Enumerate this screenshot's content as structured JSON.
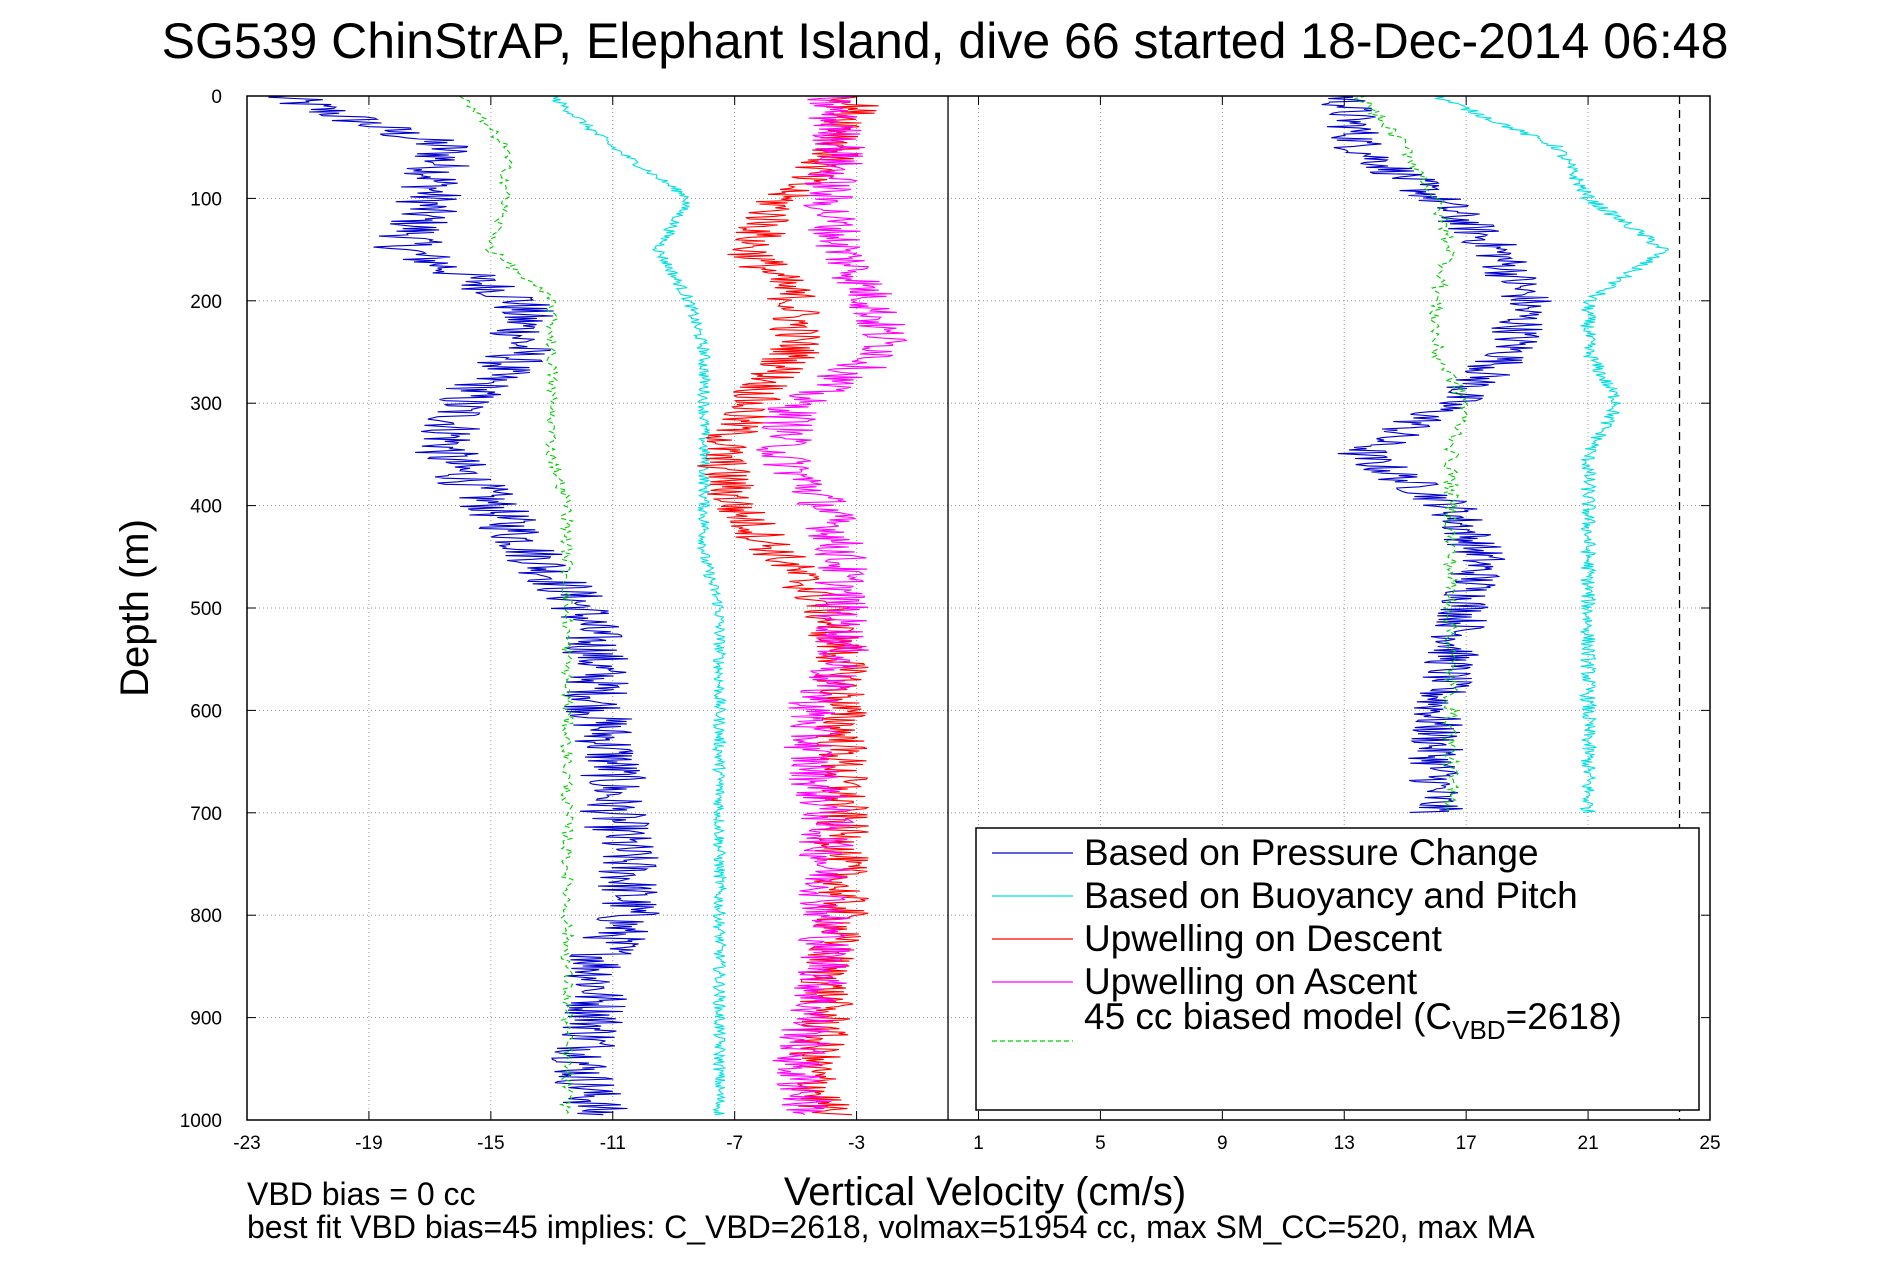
{
  "chart_data": {
    "type": "line",
    "title": "SG539 ChinStrAP, Elephant Island, dive 66 started 18-Dec-2014 06:48",
    "xlabel": "Vertical Velocity (cm/s)",
    "ylabel": "Depth (m)",
    "xlim": [
      -23,
      25
    ],
    "ylim": [
      0,
      1000
    ],
    "y_reversed": true,
    "grid": true,
    "x_ticks": [
      "-23",
      "-19",
      "-15",
      "-11",
      "-7",
      "-3",
      "1",
      "5",
      "9",
      "13",
      "17",
      "21",
      "25"
    ],
    "y_ticks": [
      "0",
      "100",
      "200",
      "300",
      "400",
      "500",
      "600",
      "700",
      "800",
      "900",
      "1000"
    ],
    "legend_position": "bottom-right",
    "zero_line_x": 0,
    "limit_line_x": 24,
    "footer": {
      "line1": "VBD bias = 0 cc",
      "line2": "best fit VBD bias=45 implies: C_VBD=2618, volmax=51954 cc, max SM_CC=520, max MA"
    },
    "series": [
      {
        "name": "Based on Pressure Change",
        "color": "#0000cc",
        "style": "solid",
        "legs": [
          {
            "depth": [
              0,
              50,
              100,
              150,
              200,
              250,
              300,
              350,
              400,
              450,
              500,
              550,
              600,
              650,
              700,
              750,
              800,
              850,
              900,
              950,
              995
            ],
            "vel": [
              -22,
              -16.5,
              -17,
              -17.8,
              -14,
              -14,
              -16,
              -16.5,
              -15,
              -13.5,
              -12,
              -11.5,
              -11.5,
              -11,
              -11,
              -10.5,
              -10.5,
              -11.5,
              -11.5,
              -12,
              -11.5
            ],
            "noise": 1.1
          },
          {
            "depth": [
              0,
              50,
              100,
              150,
              200,
              250,
              300,
              350,
              400,
              450,
              500,
              550,
              600,
              650,
              700
            ],
            "vel": [
              13,
              13.5,
              16,
              18,
              19,
              18.5,
              16.5,
              13.5,
              16.5,
              17.5,
              17,
              16.5,
              16,
              16,
              16
            ],
            "noise": 0.9
          }
        ]
      },
      {
        "name": "Based on Buoyancy and Pitch",
        "color": "#00e0e0",
        "style": "solid",
        "legs": [
          {
            "depth": [
              0,
              50,
              100,
              150,
              200,
              250,
              300,
              350,
              400,
              450,
              500,
              550,
              600,
              650,
              700,
              750,
              800,
              850,
              900,
              950,
              995
            ],
            "vel": [
              -13,
              -11,
              -8.5,
              -9.5,
              -8.5,
              -8,
              -8,
              -8,
              -8,
              -8,
              -7.5,
              -7.5,
              -7.5,
              -7.5,
              -7.5,
              -7.5,
              -7.5,
              -7.5,
              -7.5,
              -7.5,
              -7.5
            ],
            "noise": 0.2
          },
          {
            "depth": [
              0,
              50,
              100,
              150,
              200,
              250,
              300,
              350,
              400,
              450,
              500,
              550,
              600,
              650,
              700
            ],
            "vel": [
              16,
              20,
              21,
              23.5,
              21,
              21,
              22,
              21,
              21,
              21,
              21,
              21,
              21,
              21,
              21
            ],
            "noise": 0.25
          }
        ]
      },
      {
        "name": "Upwelling on Descent",
        "color": "#ff0000",
        "style": "solid",
        "legs": [
          {
            "depth": [
              0,
              50,
              100,
              150,
              200,
              250,
              300,
              350,
              400,
              450,
              500,
              550,
              600,
              650,
              700,
              750,
              800,
              850,
              900,
              950,
              995
            ],
            "vel": [
              -3,
              -3.5,
              -5.5,
              -6.5,
              -5,
              -5,
              -6.5,
              -7.5,
              -7,
              -5.5,
              -4,
              -3.5,
              -3.5,
              -3.5,
              -3.5,
              -3.5,
              -3.5,
              -4,
              -4,
              -4.5,
              -4
            ],
            "noise": 0.9
          }
        ]
      },
      {
        "name": "Upwelling on Ascent",
        "color": "#ff00ff",
        "style": "solid",
        "legs": [
          {
            "depth": [
              0,
              50,
              100,
              150,
              200,
              250,
              300,
              350,
              400,
              450,
              500,
              550,
              600,
              650,
              700,
              750,
              800,
              850,
              900,
              950,
              995
            ],
            "vel": [
              -4,
              -3.5,
              -4,
              -3.5,
              -2.5,
              -2,
              -5,
              -5.5,
              -4,
              -3.5,
              -3.5,
              -3.5,
              -4.5,
              -4.5,
              -4,
              -4,
              -4,
              -4,
              -4.5,
              -5,
              -4.5
            ],
            "noise": 0.9
          }
        ]
      },
      {
        "name": "45 cc biased model (C",
        "name_sub": "VBD",
        "name_post": "=2618)",
        "color": "#00cc00",
        "style": "dashed",
        "legs": [
          {
            "depth": [
              0,
              50,
              100,
              150,
              200,
              250,
              300,
              350,
              400,
              450,
              500,
              550,
              600,
              650,
              700,
              750,
              800,
              850,
              900,
              950,
              995
            ],
            "vel": [
              -16,
              -14.5,
              -14.5,
              -15,
              -13,
              -13,
              -13,
              -13,
              -12.5,
              -12.5,
              -12.5,
              -12.5,
              -12.5,
              -12.5,
              -12.5,
              -12.5,
              -12.5,
              -12.5,
              -12.5,
              -12.5,
              -12.5
            ],
            "noise": 0.2
          },
          {
            "depth": [
              0,
              50,
              100,
              150,
              200,
              250,
              300,
              350,
              400,
              450,
              500,
              550,
              600,
              650,
              700
            ],
            "vel": [
              13.5,
              15,
              16,
              16.5,
              16,
              16,
              17,
              16.5,
              16.5,
              16.5,
              16.5,
              16.5,
              16.5,
              16.5,
              16.5
            ],
            "noise": 0.25
          }
        ]
      }
    ]
  }
}
